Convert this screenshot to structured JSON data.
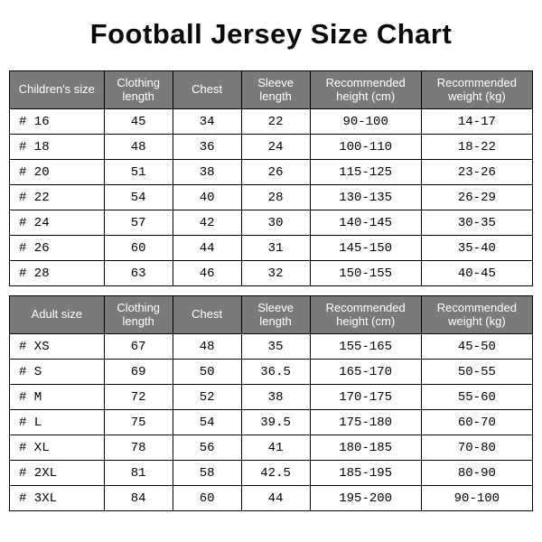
{
  "title": "Football Jersey Size Chart",
  "children_headers": [
    "Children's size",
    "Clothing length",
    "Chest",
    "Sleeve length",
    "Recommended height (cm)",
    "Recommended weight (kg)"
  ],
  "adult_headers": [
    "Adult size",
    "Clothing length",
    "Chest",
    "Sleeve length",
    "Recommended height (cm)",
    "Recommended weight (kg)"
  ],
  "children_rows": [
    {
      "size": "# 16",
      "len": "45",
      "chest": "34",
      "sleeve": "22",
      "height": "90-100",
      "weight": "14-17"
    },
    {
      "size": "# 18",
      "len": "48",
      "chest": "36",
      "sleeve": "24",
      "height": "100-110",
      "weight": "18-22"
    },
    {
      "size": "# 20",
      "len": "51",
      "chest": "38",
      "sleeve": "26",
      "height": "115-125",
      "weight": "23-26"
    },
    {
      "size": "# 22",
      "len": "54",
      "chest": "40",
      "sleeve": "28",
      "height": "130-135",
      "weight": "26-29"
    },
    {
      "size": "# 24",
      "len": "57",
      "chest": "42",
      "sleeve": "30",
      "height": "140-145",
      "weight": "30-35"
    },
    {
      "size": "# 26",
      "len": "60",
      "chest": "44",
      "sleeve": "31",
      "height": "145-150",
      "weight": "35-40"
    },
    {
      "size": "# 28",
      "len": "63",
      "chest": "46",
      "sleeve": "32",
      "height": "150-155",
      "weight": "40-45"
    }
  ],
  "adult_rows": [
    {
      "size": "# XS",
      "len": "67",
      "chest": "48",
      "sleeve": "35",
      "height": "155-165",
      "weight": "45-50"
    },
    {
      "size": "# S",
      "len": "69",
      "chest": "50",
      "sleeve": "36.5",
      "height": "165-170",
      "weight": "50-55"
    },
    {
      "size": "# M",
      "len": "72",
      "chest": "52",
      "sleeve": "38",
      "height": "170-175",
      "weight": "55-60"
    },
    {
      "size": "# L",
      "len": "75",
      "chest": "54",
      "sleeve": "39.5",
      "height": "175-180",
      "weight": "60-70"
    },
    {
      "size": "# XL",
      "len": "78",
      "chest": "56",
      "sleeve": "41",
      "height": "180-185",
      "weight": "70-80"
    },
    {
      "size": "# 2XL",
      "len": "81",
      "chest": "58",
      "sleeve": "42.5",
      "height": "185-195",
      "weight": "80-90"
    },
    {
      "size": "# 3XL",
      "len": "84",
      "chest": "60",
      "sleeve": "44",
      "height": "195-200",
      "weight": "90-100"
    }
  ],
  "colors": {
    "header_bg": "#7a7a7a",
    "header_fg": "#ffffff",
    "border": "#000000",
    "cell_bg": "#ffffff",
    "cell_fg": "#000000"
  }
}
